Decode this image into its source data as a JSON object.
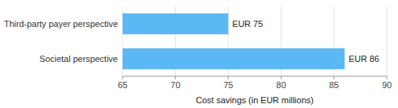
{
  "chart_data": {
    "type": "bar",
    "orientation": "horizontal",
    "categories": [
      "Societal perspective",
      "Third-party payer perspective"
    ],
    "values": [
      86,
      75
    ],
    "value_labels": [
      "EUR 86",
      "EUR 75"
    ],
    "data_labels": true,
    "color": "#5BB8F5",
    "xlabel": "Cost savings (in EUR millions)",
    "xlim": [
      65,
      90
    ],
    "xticks": [
      65,
      70,
      75,
      80,
      85,
      90
    ],
    "grid": true
  }
}
